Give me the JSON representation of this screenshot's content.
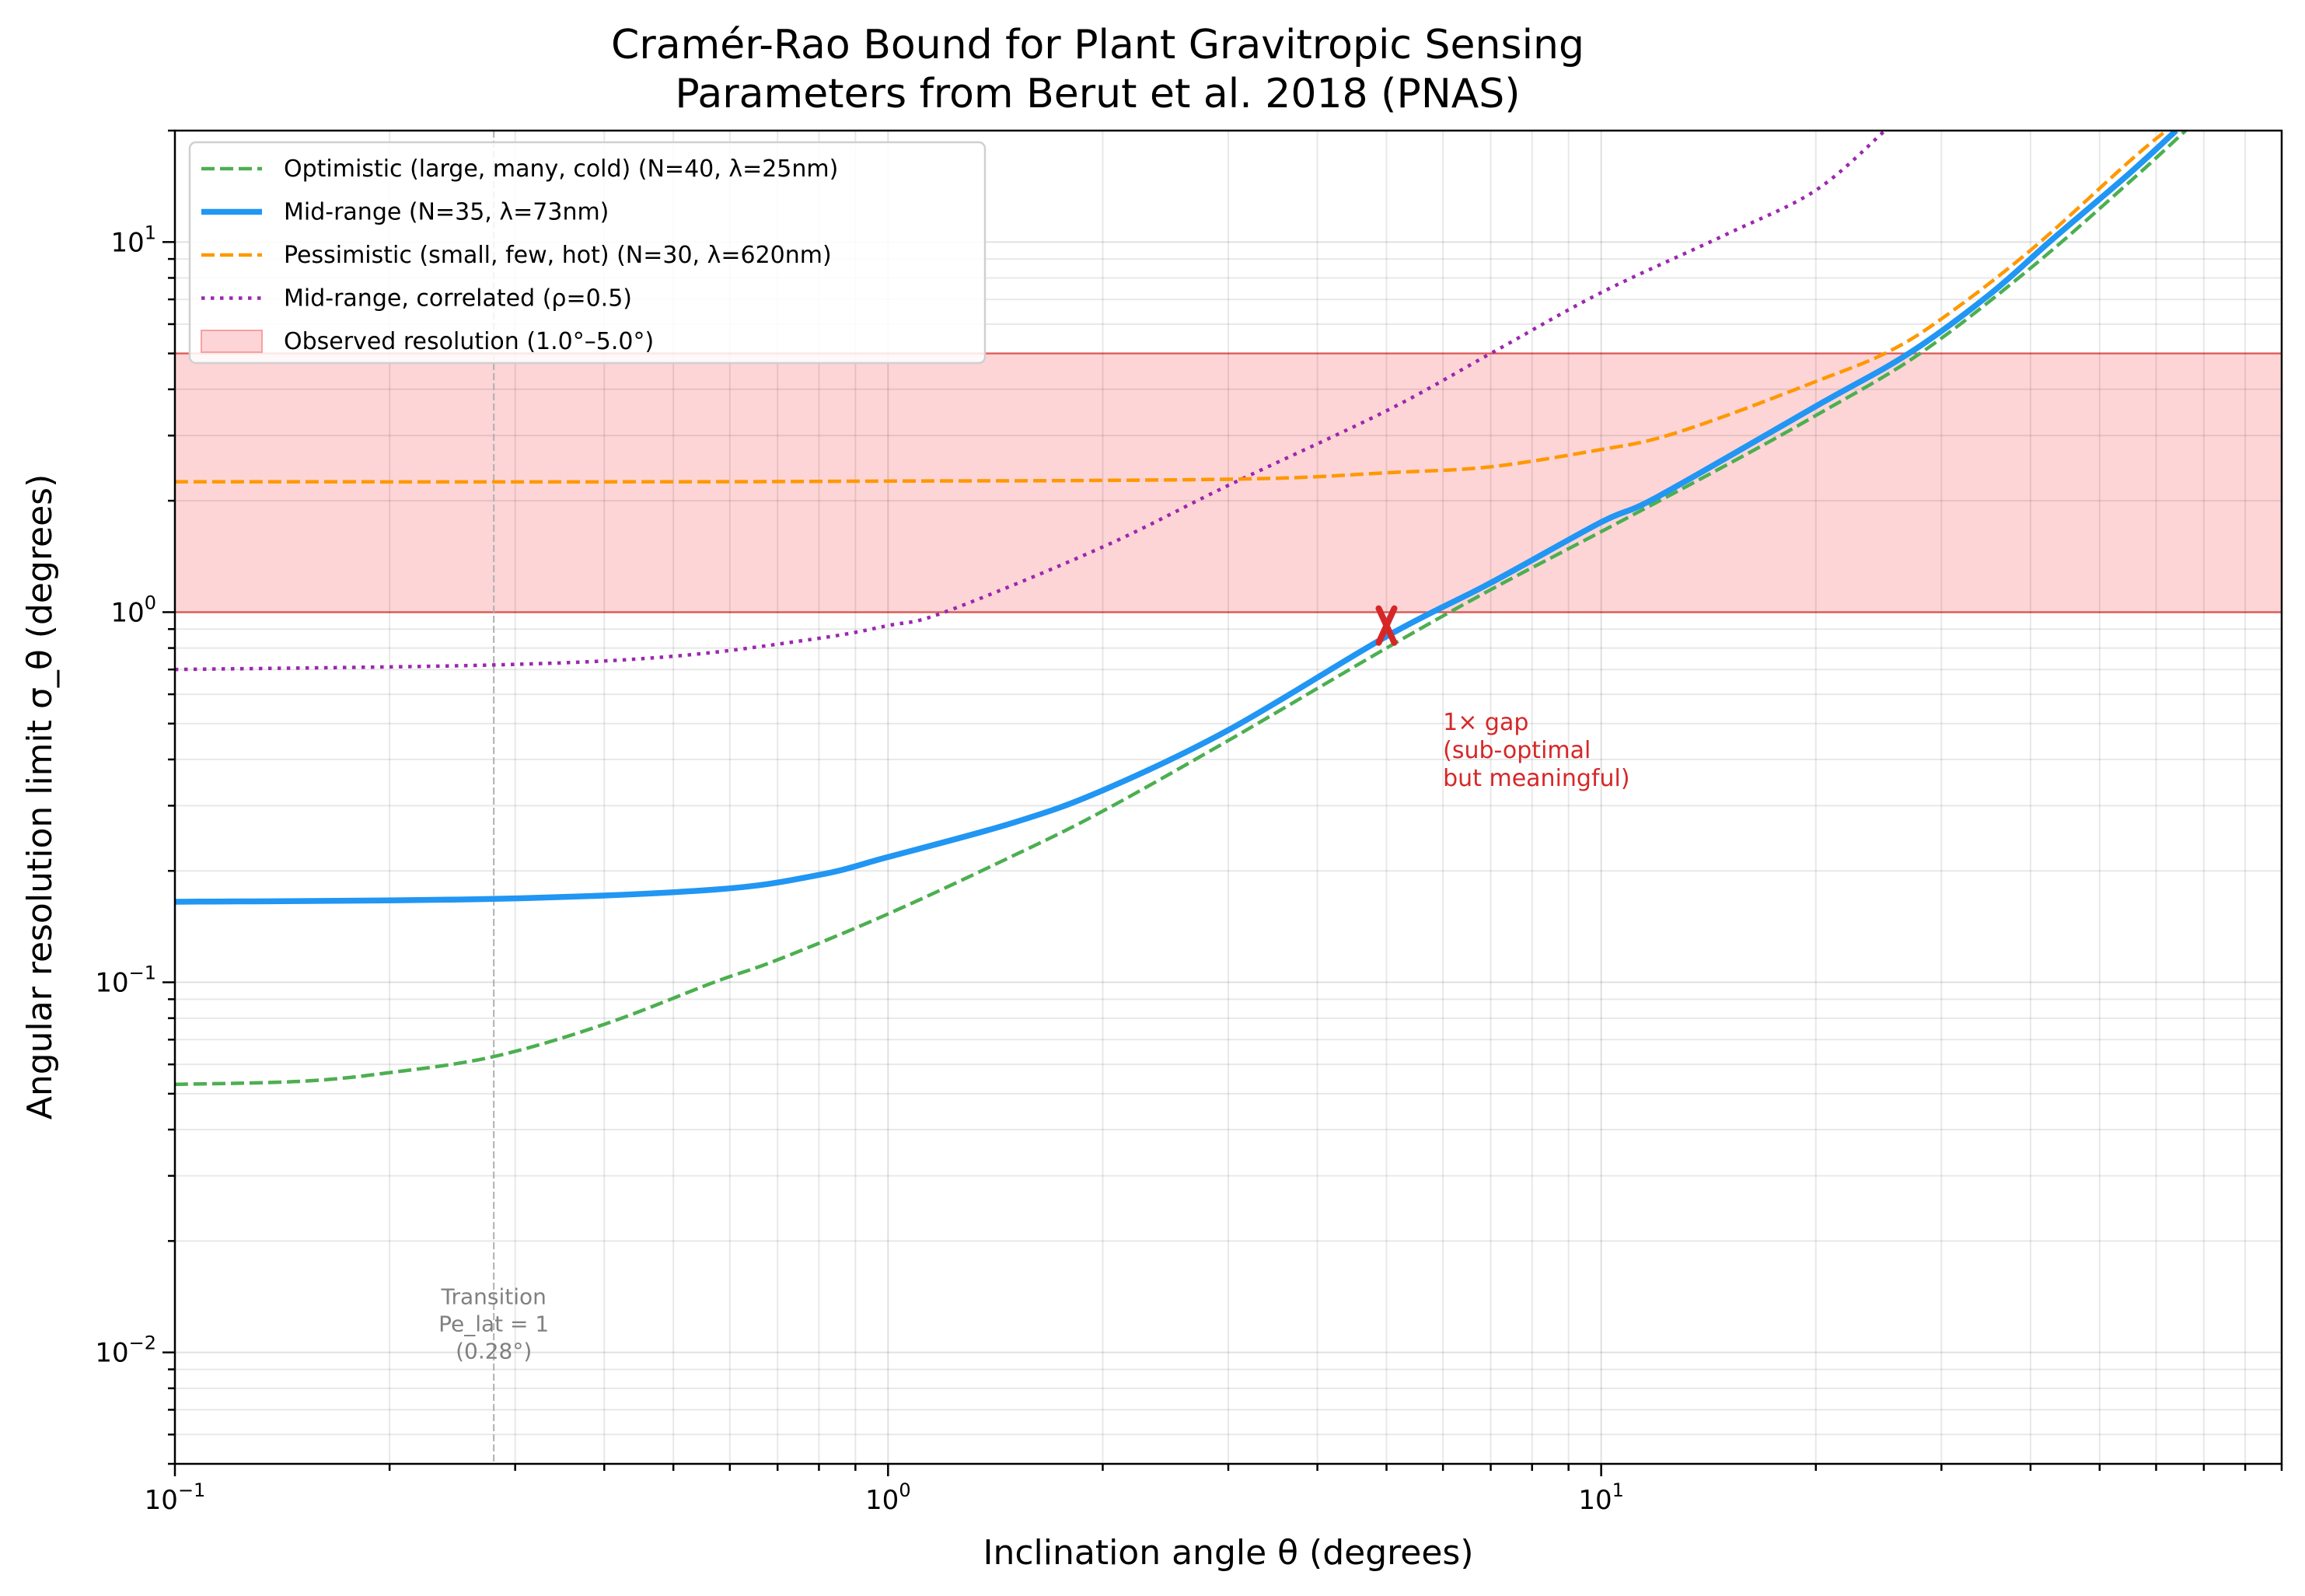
{
  "chart_data": {
    "type": "line",
    "title": [
      "Cramér-Rao Bound for Plant Gravitropic Sensing",
      "Parameters from Berut et al. 2018 (PNAS)"
    ],
    "xlabel": "Inclination angle θ (degrees)",
    "ylabel": "Angular resolution limit σ_θ (degrees)",
    "xscale": "log",
    "yscale": "log",
    "xlim": [
      0.1,
      90
    ],
    "ylim": [
      0.005,
      20
    ],
    "grid": true,
    "legend_placement": "upper-left",
    "xticks": [
      {
        "base": "10",
        "exp": "−1",
        "value": 0.1
      },
      {
        "base": "10",
        "exp": "0",
        "value": 1
      },
      {
        "base": "10",
        "exp": "1",
        "value": 10
      }
    ],
    "yticks": [
      {
        "base": "10",
        "exp": "−2",
        "value": 0.01
      },
      {
        "base": "10",
        "exp": "−1",
        "value": 0.1
      },
      {
        "base": "10",
        "exp": "0",
        "value": 1
      },
      {
        "base": "10",
        "exp": "1",
        "value": 10
      }
    ],
    "series": [
      {
        "name": "Optimistic (large, many, cold) (N=40, λ=25nm)",
        "color": "#4caf50",
        "style": "dashed",
        "x": [
          0.1,
          0.15,
          0.2,
          0.28,
          0.4,
          0.57,
          0.7,
          1,
          1.5,
          2,
          3,
          5,
          7,
          10,
          15,
          20,
          28,
          40,
          55,
          66
        ],
        "y": [
          0.053,
          0.054,
          0.057,
          0.063,
          0.077,
          0.1,
          0.115,
          0.153,
          0.22,
          0.29,
          0.45,
          0.8,
          1.15,
          1.65,
          2.5,
          3.4,
          5,
          8.5,
          14.5,
          20
        ]
      },
      {
        "name": "Mid-range (N=35, λ=73nm)",
        "color": "#2196f3",
        "style": "solid",
        "x": [
          0.1,
          0.28,
          0.57,
          0.8,
          1,
          1.5,
          2,
          3,
          5,
          7,
          10,
          12,
          20,
          27,
          35,
          43,
          55,
          64
        ],
        "y": [
          0.165,
          0.168,
          0.178,
          0.195,
          0.218,
          0.27,
          0.33,
          0.48,
          0.86,
          1.2,
          1.75,
          2.05,
          3.6,
          5,
          7.2,
          10.2,
          15.3,
          20
        ]
      },
      {
        "name": "Pessimistic (small, few, hot) (N=30, λ=620nm)",
        "color": "#ff9800",
        "style": "dashed",
        "x": [
          0.1,
          0.5,
          1,
          2,
          3.5,
          5,
          7,
          10,
          12,
          15,
          20,
          25,
          30,
          40,
          55,
          62
        ],
        "y": [
          2.25,
          2.25,
          2.26,
          2.27,
          2.3,
          2.38,
          2.47,
          2.75,
          2.95,
          3.4,
          4.2,
          5,
          6.2,
          9.5,
          16.5,
          20
        ]
      },
      {
        "name": "Mid-range, correlated (ρ=0.5)",
        "color": "#9c27b0",
        "style": "dotted",
        "x": [
          0.1,
          0.28,
          0.5,
          0.8,
          1,
          1.2,
          2,
          3,
          5,
          7,
          10,
          15,
          20,
          25
        ],
        "y": [
          0.7,
          0.72,
          0.76,
          0.85,
          0.92,
          1.0,
          1.5,
          2.2,
          3.5,
          5,
          7.3,
          10.5,
          13.8,
          20
        ]
      }
    ],
    "band": {
      "name": "Observed resolution (1.0°–5.0°)",
      "y_range": [
        1.0,
        5.0
      ],
      "fill": "#fdd5d6",
      "edge": "#ef5350"
    },
    "vline": {
      "x": 0.28,
      "color": "#b0b0b0",
      "style": "dashed"
    },
    "marker": {
      "x": 5,
      "y": 0.92,
      "symbol": "x",
      "color": "#d62728"
    },
    "annotations": [
      {
        "lines": [
          "1× gap",
          "(sub-optimal",
          "but meaningful)"
        ],
        "x": 6,
        "y": 0.48,
        "color": "#d62728"
      },
      {
        "lines": [
          "Transition",
          "Pe_lat = 1",
          "(0.28°)"
        ],
        "x": 0.28,
        "y": 0.0135,
        "color": "#808080"
      }
    ]
  }
}
